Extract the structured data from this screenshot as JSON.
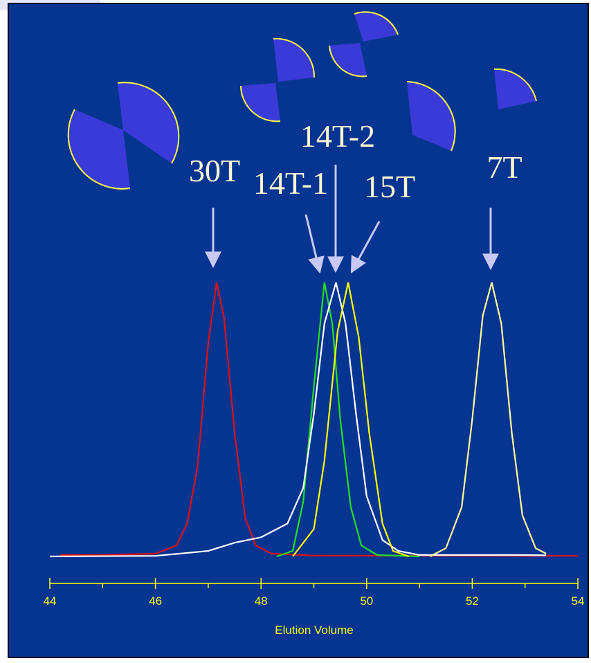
{
  "chart_data": {
    "type": "line",
    "xlabel": "Elution Volume",
    "xlim": [
      44,
      54
    ],
    "xticks": [
      44,
      46,
      48,
      50,
      52,
      54
    ],
    "xminorticks": [
      45,
      47,
      49,
      51,
      53
    ],
    "ylim": [
      0,
      1.2
    ],
    "annotations": [
      "30T",
      "14T-1",
      "14T-2",
      "15T",
      "7T"
    ],
    "series": [
      {
        "color": "#e01010",
        "x": [
          44.2,
          45,
          46,
          46.4,
          46.6,
          46.8,
          47.0,
          47.16,
          47.3,
          47.5,
          47.7,
          47.9,
          48.2,
          49,
          54
        ],
        "values": [
          0.005,
          0.005,
          0.01,
          0.04,
          0.12,
          0.33,
          0.78,
          1.0,
          0.87,
          0.45,
          0.14,
          0.04,
          0.01,
          0.003,
          0.002
        ]
      },
      {
        "color": "#20e020",
        "x": [
          48.3,
          48.6,
          48.8,
          49.0,
          49.2,
          49.35,
          49.5,
          49.7,
          49.9,
          50.2,
          51
        ],
        "values": [
          0,
          0.02,
          0.2,
          0.62,
          1.0,
          0.85,
          0.5,
          0.18,
          0.04,
          0.005,
          0
        ]
      },
      {
        "color": "#ffffff",
        "x": [
          44,
          46,
          47,
          47.5,
          48,
          48.5,
          48.8,
          49.0,
          49.2,
          49.42,
          49.6,
          49.8,
          50.0,
          50.3,
          50.6,
          51,
          52,
          53,
          53.4
        ],
        "values": [
          0,
          0.002,
          0.02,
          0.05,
          0.07,
          0.12,
          0.25,
          0.52,
          0.85,
          1.0,
          0.85,
          0.52,
          0.22,
          0.06,
          0.02,
          0.005,
          0.005,
          0.005,
          0.004
        ]
      },
      {
        "color": "#ffff00",
        "x": [
          48.6,
          49.0,
          49.2,
          49.45,
          49.65,
          49.85,
          50.05,
          50.3,
          50.5,
          50.8
        ],
        "values": [
          0,
          0.1,
          0.35,
          0.82,
          1.0,
          0.8,
          0.45,
          0.12,
          0.02,
          0
        ]
      },
      {
        "color": "#ffff99",
        "x": [
          51.2,
          51.5,
          51.8,
          52.0,
          52.2,
          52.37,
          52.55,
          52.75,
          52.95,
          53.2,
          53.4
        ],
        "values": [
          0,
          0.03,
          0.18,
          0.5,
          0.88,
          1.0,
          0.85,
          0.45,
          0.15,
          0.03,
          0.01
        ]
      }
    ]
  }
}
